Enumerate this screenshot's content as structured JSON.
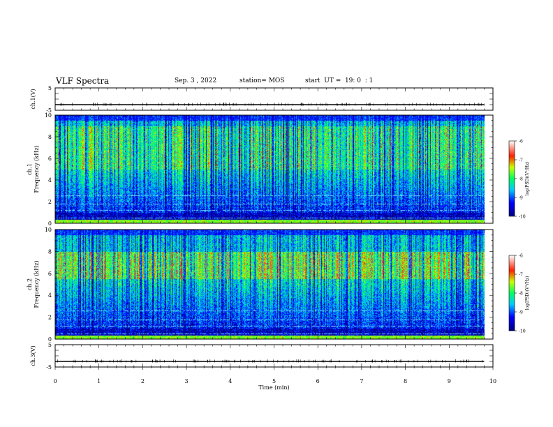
{
  "header": {
    "title": "VLF Spectra",
    "date": "Sep. 3 , 2022",
    "station": "station= MOS",
    "start": "start  UT =  19: 0  : 1"
  },
  "chart_data": [
    {
      "type": "line",
      "panel": "ch1-voltage",
      "ylabel": "ch.1(V)",
      "ylim": [
        -5,
        5
      ],
      "y_ticks": [
        "5",
        "-5"
      ],
      "x_range_min": [
        0,
        9.8
      ],
      "y_value": -2.5
    },
    {
      "type": "heatmap",
      "panel": "ch1-spectrogram",
      "ylabel_line1": "ch.1",
      "ylabel_line2": "Frequency (kHz)",
      "ylim": [
        0,
        10
      ],
      "y_ticks": [
        "0",
        "2",
        "4",
        "6",
        "8",
        "10"
      ],
      "colorbar": {
        "label": "log(PSD)(V²/Hz)",
        "ticks": [
          "-6",
          "-7",
          "-8",
          "-9",
          "-10"
        ],
        "range": [
          -10,
          -6
        ]
      },
      "intensity_band_khz": [
        1.0,
        9.5
      ],
      "peak_intensity_khz": [
        5.0,
        9.0
      ]
    },
    {
      "type": "heatmap",
      "panel": "ch2-spectrogram",
      "ylabel_line1": "ch.2",
      "ylabel_line2": "Frequency (kHz)",
      "ylim": [
        0,
        10
      ],
      "y_ticks": [
        "0",
        "2",
        "4",
        "6",
        "8",
        "10"
      ],
      "colorbar": {
        "label": "log(PSD)(V²/Hz)",
        "ticks": [
          "-6",
          "-7",
          "-8",
          "-9",
          "-10"
        ],
        "range": [
          -10,
          -6
        ]
      },
      "intensity_band_khz": [
        1.0,
        9.5
      ],
      "peak_intensity_khz": [
        5.5,
        8.0
      ]
    },
    {
      "type": "line",
      "panel": "ch3-voltage",
      "ylabel": "ch.3(V)",
      "ylim": [
        -5,
        5
      ],
      "y_ticks": [
        "5",
        "-5"
      ],
      "x_range_min": [
        0,
        9.8
      ],
      "y_value": -2.5
    }
  ],
  "x_axis": {
    "label": "Time (min)",
    "range": [
      0,
      10
    ],
    "ticks": [
      "0",
      "1",
      "2",
      "3",
      "4",
      "5",
      "6",
      "7",
      "8",
      "9",
      "10"
    ]
  }
}
